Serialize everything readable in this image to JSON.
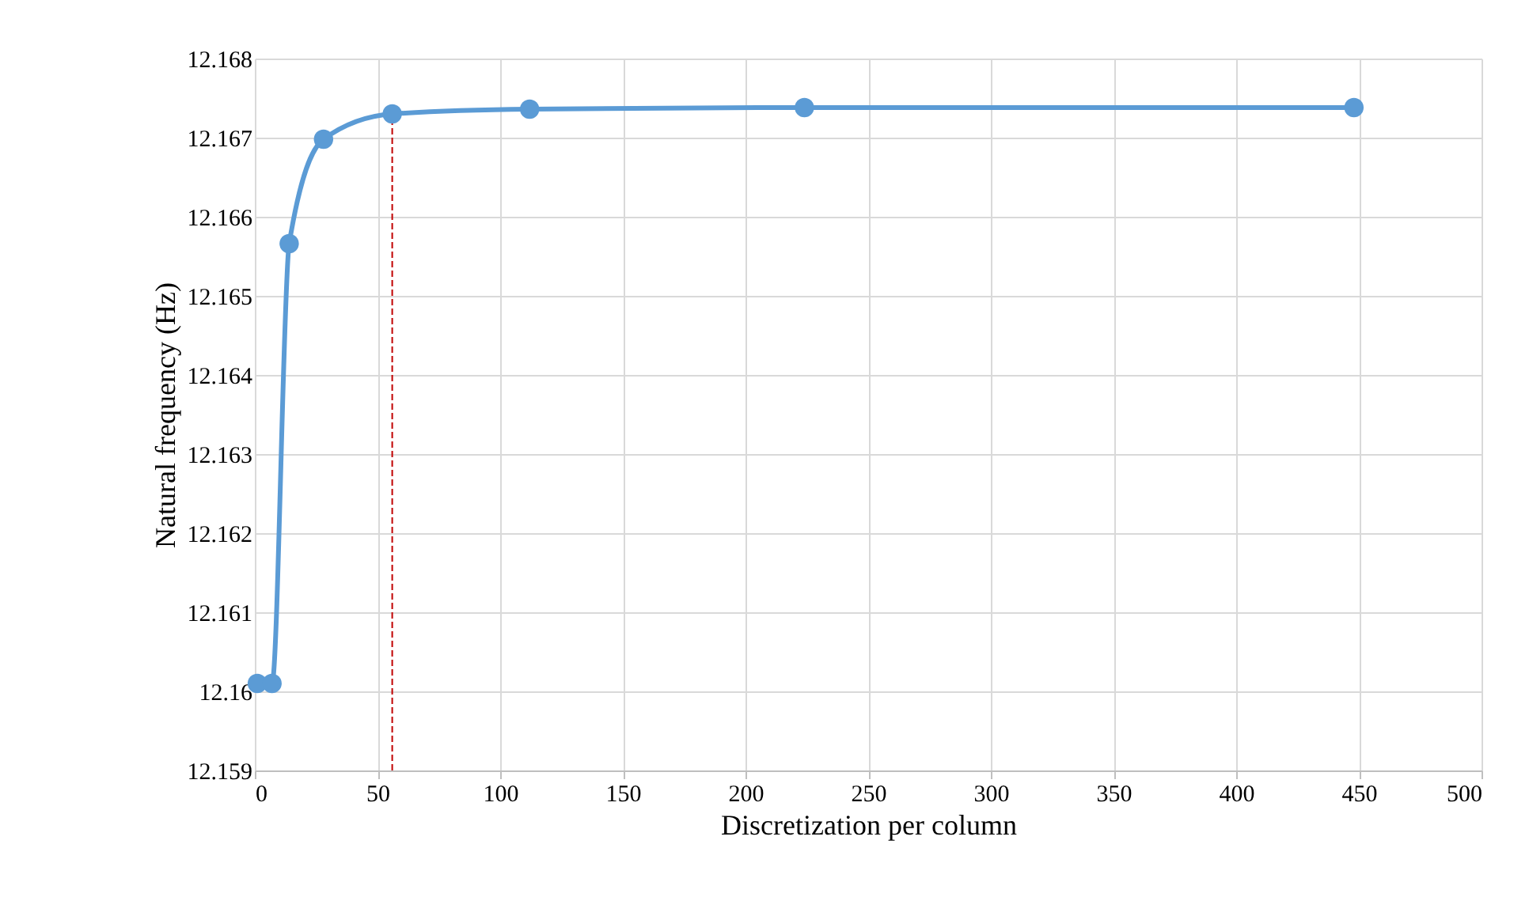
{
  "chart_data": {
    "type": "line",
    "xlabel": "Discretization per column",
    "ylabel": "Natural frequency (Hz)",
    "x": [
      1,
      7,
      14,
      28,
      56,
      112,
      224,
      448
    ],
    "series": [
      {
        "color": "#5b9bd5",
        "values": [
          12.1601,
          12.1601,
          12.16566,
          12.16698,
          12.1673,
          12.16736,
          12.16738,
          12.16738
        ]
      }
    ],
    "xlim": [
      0,
      500
    ],
    "xticks": [
      0,
      50,
      100,
      150,
      200,
      250,
      300,
      350,
      400,
      450,
      500
    ],
    "ylim": [
      12.159,
      12.168
    ],
    "yticks": [
      12.159,
      12.16,
      12.161,
      12.162,
      12.163,
      12.164,
      12.165,
      12.166,
      12.167,
      12.168
    ],
    "ref_lines": [
      {
        "axis": "x",
        "value": 56,
        "color": "#c00000",
        "line_style": "dashed"
      }
    ],
    "grid": true,
    "marker": "circle"
  }
}
